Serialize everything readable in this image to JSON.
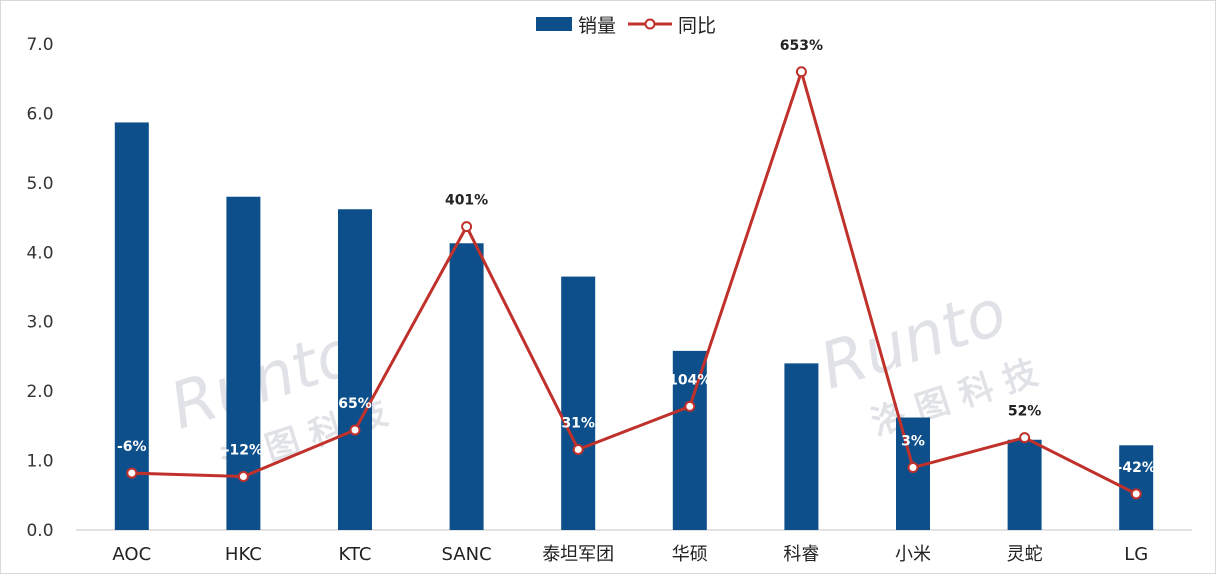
{
  "legend": {
    "bar_label": "销量",
    "line_label": "同比"
  },
  "colors": {
    "bar": "#0d4f8b",
    "line": "#c0312b",
    "marker_fill": "#ffffff",
    "axis": "#d9d9d9"
  },
  "watermark": {
    "brand": "Runto",
    "name": "洛图科技"
  },
  "chart_data": {
    "type": "bar",
    "categories": [
      "AOC",
      "HKC",
      "KTC",
      "SANC",
      "泰坦军团",
      "华硕",
      "科睿",
      "小米",
      "灵蛇",
      "LG"
    ],
    "ylim": [
      0,
      7
    ],
    "y_ticks": [
      "0.0",
      "1.0",
      "2.0",
      "3.0",
      "4.0",
      "5.0",
      "6.0",
      "7.0"
    ],
    "grid": false,
    "legend_position": "top-center",
    "series": [
      {
        "name": "销量",
        "kind": "bar",
        "values": [
          5.87,
          4.8,
          4.62,
          4.13,
          3.65,
          2.58,
          2.4,
          1.62,
          1.3,
          1.22
        ]
      },
      {
        "name": "同比",
        "kind": "line",
        "percent_labels": [
          "-6%",
          "-12%",
          "65%",
          "401%",
          "31%",
          "104%",
          "653%",
          "3%",
          "52%",
          "-42%"
        ],
        "positions_on_axis": [
          0.82,
          0.77,
          1.44,
          4.37,
          1.16,
          1.78,
          6.6,
          0.9,
          1.33,
          0.52
        ]
      }
    ]
  }
}
